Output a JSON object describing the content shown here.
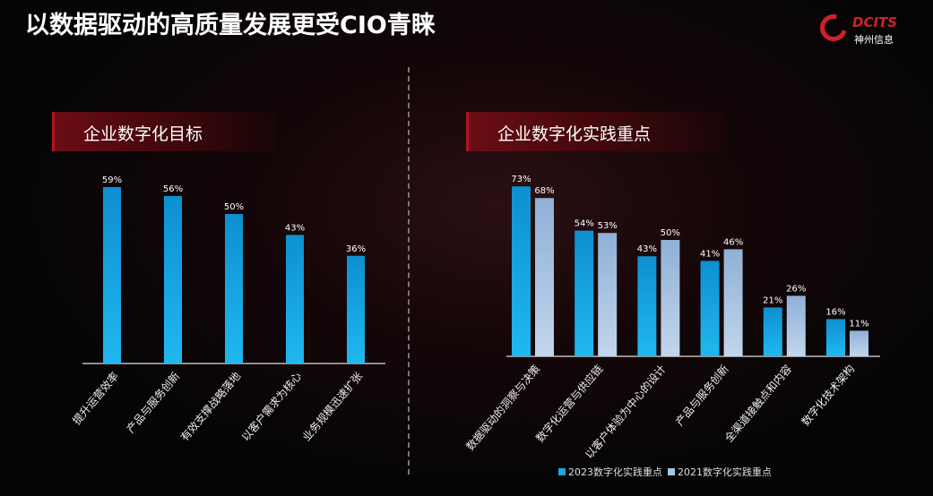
{
  "title": "以数据驱动的高质量发展更受CIO青睐",
  "logo": {
    "en": "DCITS",
    "cn": "神州信息"
  },
  "colors": {
    "series2023": "#1aa7e0",
    "series2021": "#a9c4e2",
    "brand_red": "#d2202b"
  },
  "chart_data": [
    {
      "type": "bar",
      "title": "企业数字化目标",
      "categories": [
        "提升运营效率",
        "产品与服务创新",
        "有效支撑战略落地",
        "以客户需求为核心",
        "业务规模迅速扩张"
      ],
      "values": [
        59,
        56,
        50,
        43,
        36
      ],
      "value_labels": [
        "59%",
        "56%",
        "50%",
        "43%",
        "36%"
      ],
      "unit": "%",
      "grid": false
    },
    {
      "type": "bar",
      "title": "企业数字化实践重点",
      "categories": [
        "数据驱动的洞察与决策",
        "数字化运营与供应链",
        "以客户体验为中心的设计",
        "产品与服务创新",
        "全渠道接触点和内容",
        "数字化技术架构"
      ],
      "series": [
        {
          "name": "2023数字化实践重点",
          "values": [
            73,
            54,
            43,
            41,
            21,
            16
          ],
          "labels": [
            "73%",
            "54%",
            "43%",
            "41%",
            "21%",
            "16%"
          ]
        },
        {
          "name": "2021数字化实践重点",
          "values": [
            68,
            53,
            50,
            46,
            26,
            11
          ],
          "labels": [
            "68%",
            "53%",
            "50%",
            "46%",
            "26%",
            "11%"
          ]
        }
      ],
      "unit": "%",
      "grid": false,
      "legend": "bottom"
    }
  ]
}
